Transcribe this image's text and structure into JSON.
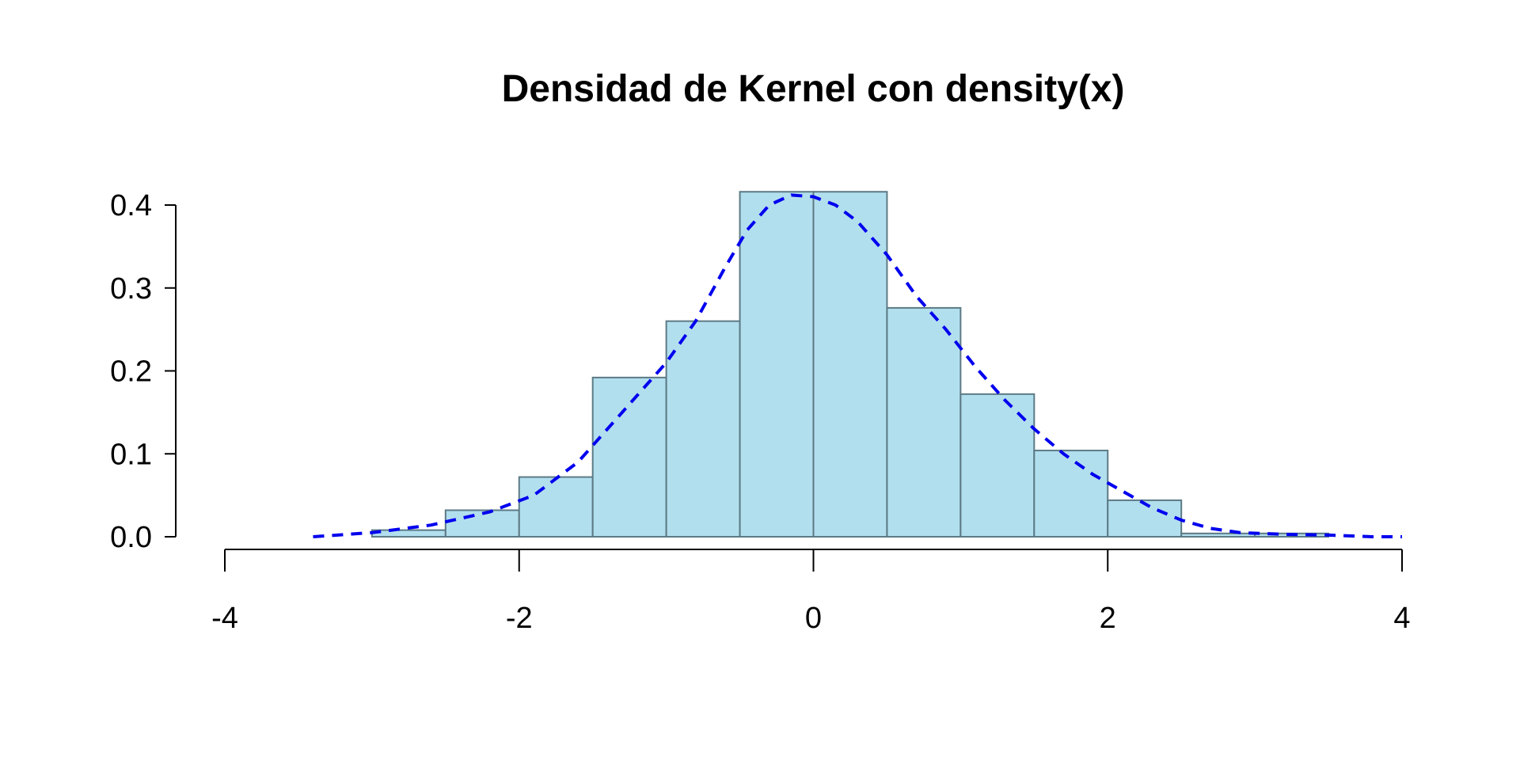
{
  "chart_data": {
    "type": "bar",
    "subtype": "histogram-with-density",
    "title": "Densidad de Kernel con density(x)",
    "xlabel": "",
    "ylabel": "",
    "xlim": [
      -4,
      4
    ],
    "ylim": [
      0,
      0.4
    ],
    "x_ticks": [
      -4,
      -2,
      0,
      2,
      4
    ],
    "y_ticks": [
      0.0,
      0.1,
      0.2,
      0.3,
      0.4
    ],
    "x_tick_labels": [
      "-4",
      "-2",
      "0",
      "2",
      "4"
    ],
    "y_tick_labels": [
      "0.0",
      "0.1",
      "0.2",
      "0.3",
      "0.4"
    ],
    "grid": false,
    "histogram": {
      "bin_edges": [
        -3.0,
        -2.5,
        -2.0,
        -1.5,
        -1.0,
        -0.5,
        0.0,
        0.5,
        1.0,
        1.5,
        2.0,
        2.5,
        3.0,
        3.5
      ],
      "densities": [
        0.008,
        0.032,
        0.072,
        0.192,
        0.26,
        0.416,
        0.416,
        0.276,
        0.172,
        0.104,
        0.044,
        0.004,
        0.004
      ],
      "fill_color": "#b2dfee",
      "border_color": "#5c7a85"
    },
    "series": [
      {
        "style": "dashed",
        "color": "#0000ee",
        "x": [
          -3.4,
          -3.0,
          -2.6,
          -2.2,
          -1.9,
          -1.6,
          -1.3,
          -1.0,
          -0.8,
          -0.6,
          -0.45,
          -0.3,
          -0.15,
          0.0,
          0.15,
          0.3,
          0.5,
          0.7,
          0.9,
          1.1,
          1.3,
          1.5,
          1.7,
          1.9,
          2.1,
          2.3,
          2.5,
          2.7,
          2.9,
          3.2,
          3.5,
          3.8,
          4.0
        ],
        "y": [
          0.0,
          0.005,
          0.014,
          0.03,
          0.05,
          0.09,
          0.15,
          0.21,
          0.26,
          0.325,
          0.37,
          0.4,
          0.412,
          0.41,
          0.4,
          0.38,
          0.34,
          0.29,
          0.25,
          0.205,
          0.165,
          0.13,
          0.1,
          0.075,
          0.055,
          0.035,
          0.02,
          0.01,
          0.005,
          0.003,
          0.002,
          0.0,
          0.0
        ]
      }
    ]
  }
}
